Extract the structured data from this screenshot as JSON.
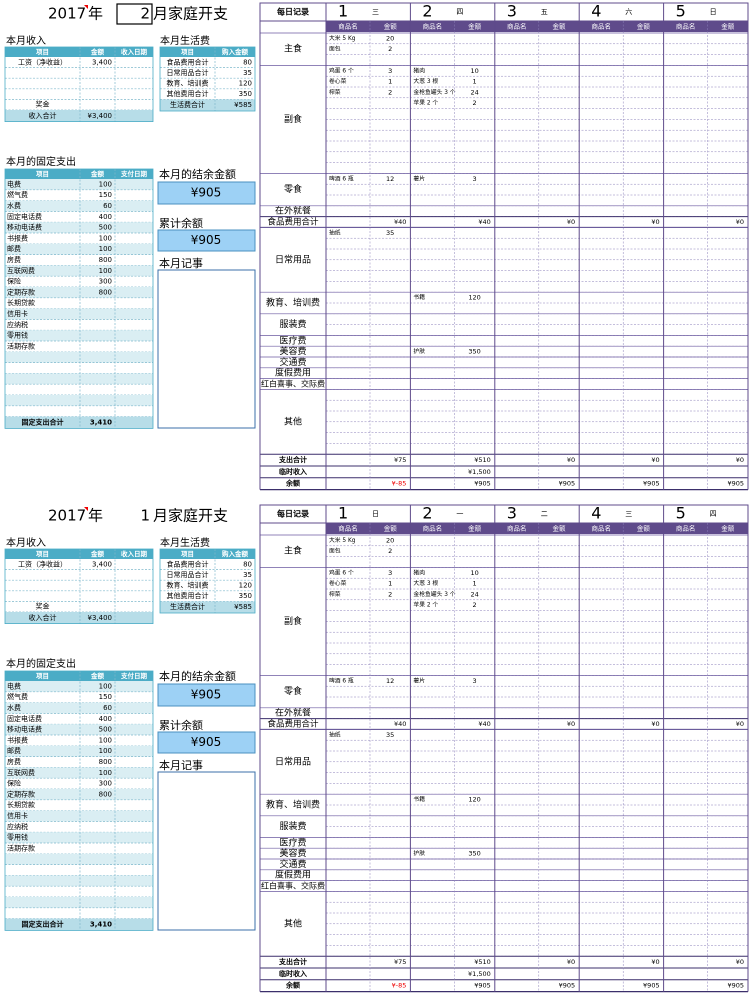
{
  "labels": {
    "year_unit": "年",
    "title": "月家庭开支",
    "income_title": "本月收入",
    "income_headers": [
      "项目",
      "金额",
      "收入日期"
    ],
    "income_total": "收入合计",
    "living_title": "本月生活费",
    "living_headers": [
      "项目",
      "购入金额"
    ],
    "living_total": "生活费合计",
    "fixed_title": "本月的固定支出",
    "fixed_headers": [
      "项目",
      "金额",
      "支付日期"
    ],
    "fixed_total": "固定支出合计",
    "balance_title": "本月的结余金额",
    "cumulative_title": "累计余额",
    "notes_title": "本月记事",
    "daily_title": "每日记录",
    "col_headers": [
      "商品名",
      "金额"
    ],
    "sections": [
      "主食",
      "副食",
      "零食",
      "在外就餐",
      "日常用品",
      "教育、培训费",
      "服装费",
      "医疗费",
      "美容费",
      "交通费",
      "度假费用",
      "红白喜事、交际费",
      "其他"
    ],
    "food_total": "食品费用合计",
    "spend_total": "支出合计",
    "temp_income": "临时收入",
    "remaining": "余额"
  },
  "sheets": [
    {
      "year": "2017",
      "month": "2",
      "income_rows": [
        [
          "工资（净收益）",
          "3,400"
        ],
        null,
        null,
        null,
        [
          "奖金"
        ]
      ],
      "income_total": "¥3,400",
      "living_rows": [
        [
          "食品费用合计",
          "80"
        ],
        [
          "日常用品合计",
          "35"
        ],
        [
          "教育、培训费",
          "120"
        ],
        [
          "其他费用合计",
          "350"
        ]
      ],
      "living_total": "¥585",
      "fixed_rows": [
        [
          "电费",
          "100"
        ],
        [
          "燃气费",
          "150"
        ],
        [
          "水费",
          "60"
        ],
        [
          "固定电话费",
          "400"
        ],
        [
          "移动电话费",
          "500"
        ],
        [
          "书报费",
          "100"
        ],
        [
          "邮费",
          "100"
        ],
        [
          "房费",
          "800"
        ],
        [
          "互联网费",
          "100"
        ],
        [
          "保险",
          "300"
        ],
        [
          "定期存款",
          "800"
        ],
        [
          "长期贷款"
        ],
        [
          "信用卡"
        ],
        [
          "应纳税"
        ],
        [
          "零用钱"
        ],
        [
          "活期存款"
        ],
        null,
        null,
        null,
        null,
        null,
        null
      ],
      "fixed_total": "3,410",
      "balance": "¥905",
      "cumulative": "¥905",
      "days": [
        {
          "day": "1",
          "weekday": "三",
          "items": {
            "staple": [
              [
                "大米 5 Kg",
                "20"
              ],
              [
                "面包",
                "2"
              ]
            ],
            "side": [
              [
                "鸡蛋 6 个",
                "3"
              ],
              [
                "卷心菜",
                "1"
              ],
              [
                "榨菜",
                "2"
              ]
            ],
            "snack": [
              [
                "啤酒 6 瓶",
                "12"
              ]
            ],
            "daily": [
              [
                "抽纸",
                "35"
              ]
            ]
          }
        },
        {
          "day": "2",
          "weekday": "四",
          "items": {
            "side": [
              [
                "猪肉",
                "10"
              ],
              [
                "大葱 3 根",
                "1"
              ],
              [
                "金枪鱼罐头 3 个",
                "24"
              ],
              [
                "苹果 2 个",
                "2"
              ]
            ],
            "snack": [
              [
                "薯片",
                "3"
              ]
            ],
            "education": [
              [
                "书籍",
                "120"
              ]
            ],
            "beauty": [
              [
                "护肤",
                "350"
              ]
            ]
          }
        },
        {
          "day": "3",
          "weekday": "五",
          "items": {}
        },
        {
          "day": "4",
          "weekday": "六",
          "items": {}
        },
        {
          "day": "5",
          "weekday": "日",
          "items": {}
        }
      ],
      "food_totals": [
        "¥40",
        "¥40",
        "¥0",
        "¥0",
        "¥0"
      ],
      "spend_totals": [
        "¥75",
        "¥510",
        "¥0",
        "¥0",
        "¥0"
      ],
      "temp_income": [
        null,
        "¥1,500",
        null,
        null,
        null
      ],
      "remaining": [
        "¥-85",
        "¥905",
        "¥905",
        "¥905",
        "¥905"
      ]
    },
    {
      "year": "2017",
      "month": "1",
      "income_rows": [
        [
          "工资（净收益）",
          "3,400"
        ],
        null,
        null,
        null,
        [
          "奖金"
        ]
      ],
      "income_total": "¥3,400",
      "living_rows": [
        [
          "食品费用合计",
          "80"
        ],
        [
          "日常用品合计",
          "35"
        ],
        [
          "教育、培训费",
          "120"
        ],
        [
          "其他费用合计",
          "350"
        ]
      ],
      "living_total": "¥585",
      "fixed_rows": [
        [
          "电费",
          "100"
        ],
        [
          "燃气费",
          "150"
        ],
        [
          "水费",
          "60"
        ],
        [
          "固定电话费",
          "400"
        ],
        [
          "移动电话费",
          "500"
        ],
        [
          "书报费",
          "100"
        ],
        [
          "邮费",
          "100"
        ],
        [
          "房费",
          "800"
        ],
        [
          "互联网费",
          "100"
        ],
        [
          "保险",
          "300"
        ],
        [
          "定期存款",
          "800"
        ],
        [
          "长期贷款"
        ],
        [
          "信用卡"
        ],
        [
          "应纳税"
        ],
        [
          "零用钱"
        ],
        [
          "活期存款"
        ],
        null,
        null,
        null,
        null,
        null,
        null
      ],
      "fixed_total": "3,410",
      "balance": "¥905",
      "cumulative": "¥905",
      "days": [
        {
          "day": "1",
          "weekday": "日",
          "items": {
            "staple": [
              [
                "大米 5 Kg",
                "20"
              ],
              [
                "面包",
                "2"
              ]
            ],
            "side": [
              [
                "鸡蛋 6 个",
                "3"
              ],
              [
                "卷心菜",
                "1"
              ],
              [
                "榨菜",
                "2"
              ]
            ],
            "snack": [
              [
                "啤酒 6 瓶",
                "12"
              ]
            ],
            "daily": [
              [
                "抽纸",
                "35"
              ]
            ]
          }
        },
        {
          "day": "2",
          "weekday": "一",
          "items": {
            "side": [
              [
                "猪肉",
                "10"
              ],
              [
                "大葱 3 根",
                "1"
              ],
              [
                "金枪鱼罐头 3 个",
                "24"
              ],
              [
                "苹果 2 个",
                "2"
              ]
            ],
            "snack": [
              [
                "薯片",
                "3"
              ]
            ],
            "education": [
              [
                "书籍",
                "120"
              ]
            ],
            "beauty": [
              [
                "护肤",
                "350"
              ]
            ]
          }
        },
        {
          "day": "3",
          "weekday": "二",
          "items": {}
        },
        {
          "day": "4",
          "weekday": "三",
          "items": {}
        },
        {
          "day": "5",
          "weekday": "四",
          "items": {}
        }
      ],
      "food_totals": [
        "¥40",
        "¥40",
        "¥0",
        "¥0",
        "¥0"
      ],
      "spend_totals": [
        "¥75",
        "¥510",
        "¥0",
        "¥0",
        "¥0"
      ],
      "temp_income": [
        null,
        "¥1,500",
        null,
        null,
        null
      ],
      "remaining": [
        "¥-85",
        "¥905",
        "¥905",
        "¥905",
        "¥905"
      ]
    }
  ]
}
